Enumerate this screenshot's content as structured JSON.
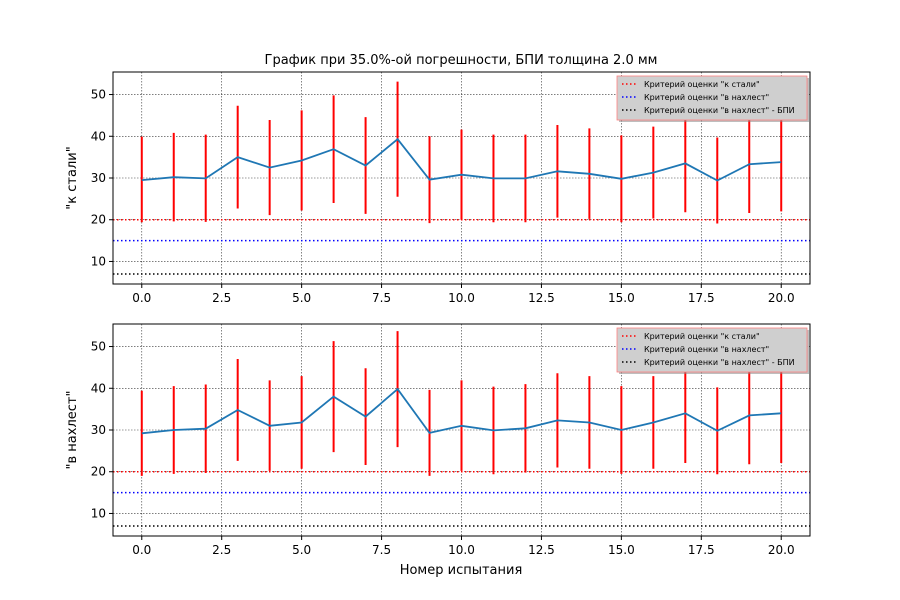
{
  "figure": {
    "title": "График при 35.0%-ой погрешности, БПИ толщина 2.0 мм",
    "xlabel": "Номер испытания"
  },
  "chart_data": [
    {
      "type": "line",
      "ylabel": "\"к стали\"",
      "xlim": [
        -0.9,
        20.9
      ],
      "ylim": [
        4.6,
        55.4
      ],
      "xticks": [
        0.0,
        2.5,
        5.0,
        7.5,
        10.0,
        12.5,
        15.0,
        17.5,
        20.0
      ],
      "xtick_labels": [
        "0.0",
        "2.5",
        "5.0",
        "7.5",
        "10.0",
        "12.5",
        "15.0",
        "17.5",
        "20.0"
      ],
      "yticks": [
        10,
        20,
        30,
        40,
        50
      ],
      "grid": true,
      "legend_position": "top-right",
      "series": [
        {
          "color": "#1f77b4",
          "x": [
            0,
            1,
            2,
            3,
            4,
            5,
            6,
            7,
            8,
            9,
            10,
            11,
            12,
            13,
            14,
            15,
            16,
            17,
            18,
            19,
            20
          ],
          "y": [
            29.5,
            30.2,
            29.9,
            35.0,
            32.5,
            34.2,
            36.9,
            33.0,
            39.3,
            29.6,
            30.8,
            29.9,
            29.9,
            31.6,
            31.0,
            29.8,
            31.3,
            33.5,
            29.4,
            33.3,
            33.8
          ]
        }
      ],
      "error_bars": {
        "color": "#ff0000",
        "low": [
          19.4,
          19.6,
          19.5,
          22.7,
          21.1,
          22.2,
          24.0,
          21.4,
          25.5,
          19.2,
          20.0,
          19.4,
          19.4,
          20.5,
          20.2,
          19.4,
          20.3,
          21.8,
          19.1,
          21.6,
          22.0
        ],
        "high": [
          39.9,
          40.8,
          40.4,
          47.3,
          43.9,
          46.2,
          49.8,
          44.6,
          53.1,
          40.0,
          41.6,
          40.4,
          40.4,
          42.7,
          41.9,
          40.2,
          42.3,
          45.2,
          39.7,
          45.0,
          45.6
        ]
      },
      "reference_lines": [
        {
          "label": "Критерий оценки \"к стали\"",
          "y": 20,
          "color": "#ff0000"
        },
        {
          "label": "Критерий оценки \"в нахлест\"",
          "y": 15,
          "color": "#0000ff"
        },
        {
          "label": "Критерий оценки \"в нахлест\" - БПИ",
          "y": 7,
          "color": "#000000"
        }
      ]
    },
    {
      "type": "line",
      "ylabel": "\"в нахлест\"",
      "xlim": [
        -0.9,
        20.9
      ],
      "ylim": [
        4.6,
        55.4
      ],
      "xticks": [
        0.0,
        2.5,
        5.0,
        7.5,
        10.0,
        12.5,
        15.0,
        17.5,
        20.0
      ],
      "xtick_labels": [
        "0.0",
        "2.5",
        "5.0",
        "7.5",
        "10.0",
        "12.5",
        "15.0",
        "17.5",
        "20.0"
      ],
      "yticks": [
        10,
        20,
        30,
        40,
        50
      ],
      "grid": true,
      "legend_position": "top-right",
      "series": [
        {
          "color": "#1f77b4",
          "x": [
            0,
            1,
            2,
            3,
            4,
            5,
            6,
            7,
            8,
            9,
            10,
            11,
            12,
            13,
            14,
            15,
            16,
            17,
            18,
            19,
            20
          ],
          "y": [
            29.2,
            30.0,
            30.3,
            34.8,
            31.0,
            31.8,
            38.0,
            33.2,
            39.8,
            29.3,
            31.0,
            29.9,
            30.4,
            32.3,
            31.8,
            30.0,
            31.8,
            34.0,
            29.8,
            33.5,
            34.0
          ]
        }
      ],
      "error_bars": {
        "color": "#ff0000",
        "low": [
          19.0,
          19.5,
          19.7,
          22.6,
          20.2,
          20.7,
          24.7,
          21.6,
          25.9,
          19.0,
          20.2,
          19.4,
          19.8,
          21.0,
          20.7,
          19.5,
          20.7,
          22.1,
          19.4,
          21.8,
          22.1
        ],
        "high": [
          39.4,
          40.5,
          40.9,
          47.0,
          41.9,
          42.9,
          51.3,
          44.8,
          53.7,
          39.6,
          41.9,
          40.4,
          41.0,
          43.6,
          42.9,
          40.5,
          42.9,
          45.9,
          40.2,
          45.2,
          45.9
        ]
      },
      "reference_lines": [
        {
          "label": "Критерий оценки \"к стали\"",
          "y": 20,
          "color": "#ff0000"
        },
        {
          "label": "Критерий оценки \"в нахлест\"",
          "y": 15,
          "color": "#0000ff"
        },
        {
          "label": "Критерий оценки \"в нахлест\" - БПИ",
          "y": 7,
          "color": "#000000"
        }
      ]
    }
  ]
}
